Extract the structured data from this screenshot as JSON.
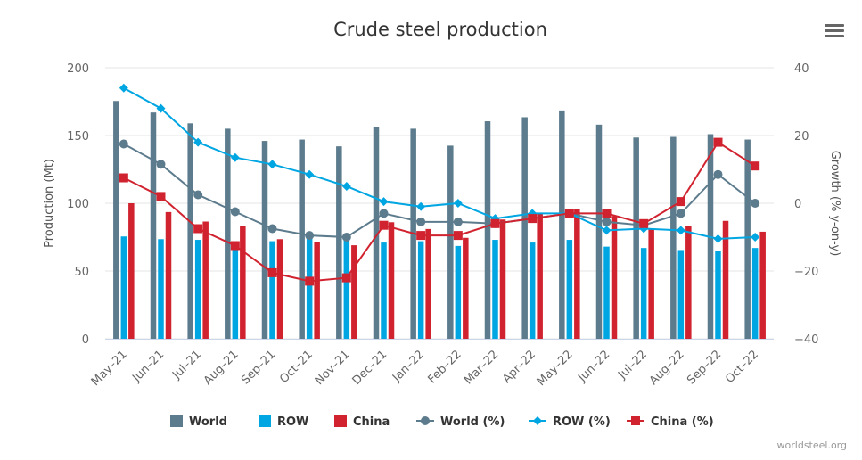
{
  "menu": {
    "icon": "hamburger-menu-icon"
  },
  "credit": "worldsteel.org",
  "colors": {
    "world": "#5c7b8d",
    "row": "#00a6e2",
    "china": "#d1232f",
    "grid": "#e6e6e6"
  },
  "chart_data": {
    "type": "bar+line",
    "title": "Crude steel production",
    "xlabel": "",
    "ylabel": "Production (Mt)",
    "y2label": "Growth (% y-on-y)",
    "ylim": [
      0,
      200
    ],
    "y2lim": [
      -40,
      40
    ],
    "yticks": [
      "0",
      "50",
      "100",
      "150",
      "200"
    ],
    "y2ticks": [
      "−40",
      "−20",
      "0",
      "20",
      "40"
    ],
    "legend_position": "bottom",
    "categories": [
      "May–21",
      "Jun–21",
      "Jul–21",
      "Aug–21",
      "Sep–21",
      "Oct–21",
      "Nov–21",
      "Dec–21",
      "Jan–22",
      "Feb–22",
      "Mar–22",
      "Apr–22",
      "May–22",
      "Jun–22",
      "Jul–22",
      "Aug–22",
      "Sep–22",
      "Oct–22"
    ],
    "bar_series": [
      {
        "name": "World",
        "key": "world",
        "values": [
          175.5,
          167,
          159,
          155,
          146,
          147,
          142,
          156.5,
          155,
          142.5,
          160.5,
          163.5,
          168.5,
          158,
          148.5,
          149,
          151,
          147
        ]
      },
      {
        "name": "ROW",
        "key": "row",
        "values": [
          75.5,
          73.5,
          73,
          71,
          72,
          75.5,
          74.5,
          71,
          72,
          68.5,
          73,
          71,
          73,
          68,
          67,
          65.5,
          64.5,
          67
        ]
      },
      {
        "name": "China",
        "key": "china",
        "values": [
          100,
          93.5,
          86.5,
          83,
          73.5,
          71.5,
          69,
          86,
          81,
          74.5,
          88,
          92.5,
          96,
          90.5,
          81.5,
          83.5,
          87,
          79
        ]
      }
    ],
    "line_series": [
      {
        "name": "World (%)",
        "key": "world",
        "marker": "circle",
        "values": [
          17.5,
          11.5,
          2.5,
          -2.5,
          -7.5,
          -9.5,
          -10,
          -3,
          -5.5,
          -5.5,
          -6,
          -4.5,
          -3,
          -5.5,
          -6.5,
          -3,
          8.5,
          0
        ]
      },
      {
        "name": "ROW (%)",
        "key": "row",
        "marker": "diamond",
        "values": [
          34,
          28,
          18,
          13.5,
          11.5,
          8.5,
          5,
          0.5,
          -1,
          0,
          -4.5,
          -3,
          -3,
          -8,
          -7.5,
          -8,
          -10.5,
          -10
        ]
      },
      {
        "name": "China (%)",
        "key": "china",
        "marker": "square",
        "values": [
          7.5,
          2,
          -7.5,
          -12.5,
          -20.5,
          -23,
          -22,
          -6.5,
          -9.5,
          -9.5,
          -6,
          -4.5,
          -3,
          -3,
          -6,
          0.5,
          18,
          11
        ]
      }
    ]
  }
}
